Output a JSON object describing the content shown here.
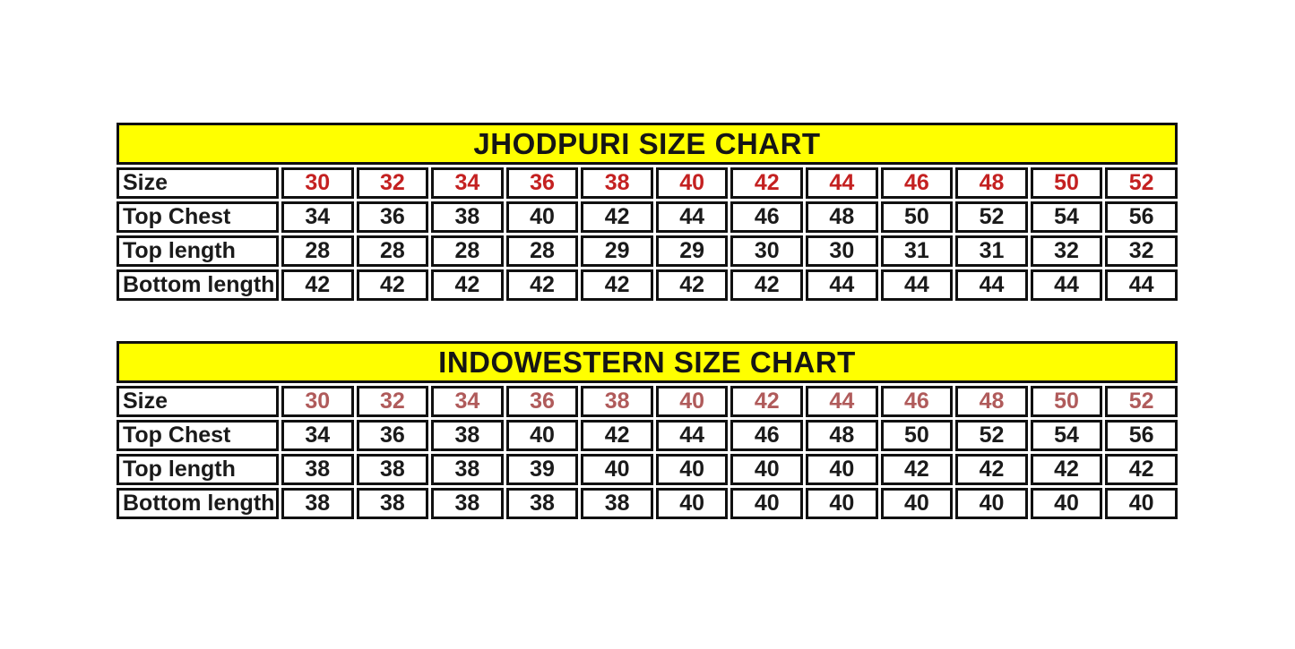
{
  "colors": {
    "title_background": "#ffff00",
    "border": "#101010",
    "body_text": "#1a1a1a",
    "jhodpuri_size_row_color": "#c42121",
    "indowestern_size_row_color": "#b05b5b"
  },
  "tables": [
    {
      "title": "JHODPURI SIZE CHART",
      "size_color": "#c42121",
      "rows": [
        {
          "label": "Size",
          "values": [
            "30",
            "32",
            "34",
            "36",
            "38",
            "40",
            "42",
            "44",
            "46",
            "48",
            "50",
            "52"
          ]
        },
        {
          "label": "Top Chest",
          "values": [
            "34",
            "36",
            "38",
            "40",
            "42",
            "44",
            "46",
            "48",
            "50",
            "52",
            "54",
            "56"
          ]
        },
        {
          "label": "Top length",
          "values": [
            "28",
            "28",
            "28",
            "28",
            "29",
            "29",
            "30",
            "30",
            "31",
            "31",
            "32",
            "32"
          ]
        },
        {
          "label": "Bottom length",
          "values": [
            "42",
            "42",
            "42",
            "42",
            "42",
            "42",
            "42",
            "44",
            "44",
            "44",
            "44",
            "44"
          ]
        }
      ]
    },
    {
      "title": "INDOWESTERN SIZE CHART",
      "size_color": "#b05b5b",
      "rows": [
        {
          "label": "Size",
          "values": [
            "30",
            "32",
            "34",
            "36",
            "38",
            "40",
            "42",
            "44",
            "46",
            "48",
            "50",
            "52"
          ]
        },
        {
          "label": "Top Chest",
          "values": [
            "34",
            "36",
            "38",
            "40",
            "42",
            "44",
            "46",
            "48",
            "50",
            "52",
            "54",
            "56"
          ]
        },
        {
          "label": "Top length",
          "values": [
            "38",
            "38",
            "38",
            "39",
            "40",
            "40",
            "40",
            "40",
            "42",
            "42",
            "42",
            "42"
          ]
        },
        {
          "label": "Bottom length",
          "values": [
            "38",
            "38",
            "38",
            "38",
            "38",
            "40",
            "40",
            "40",
            "40",
            "40",
            "40",
            "40"
          ]
        }
      ]
    }
  ]
}
